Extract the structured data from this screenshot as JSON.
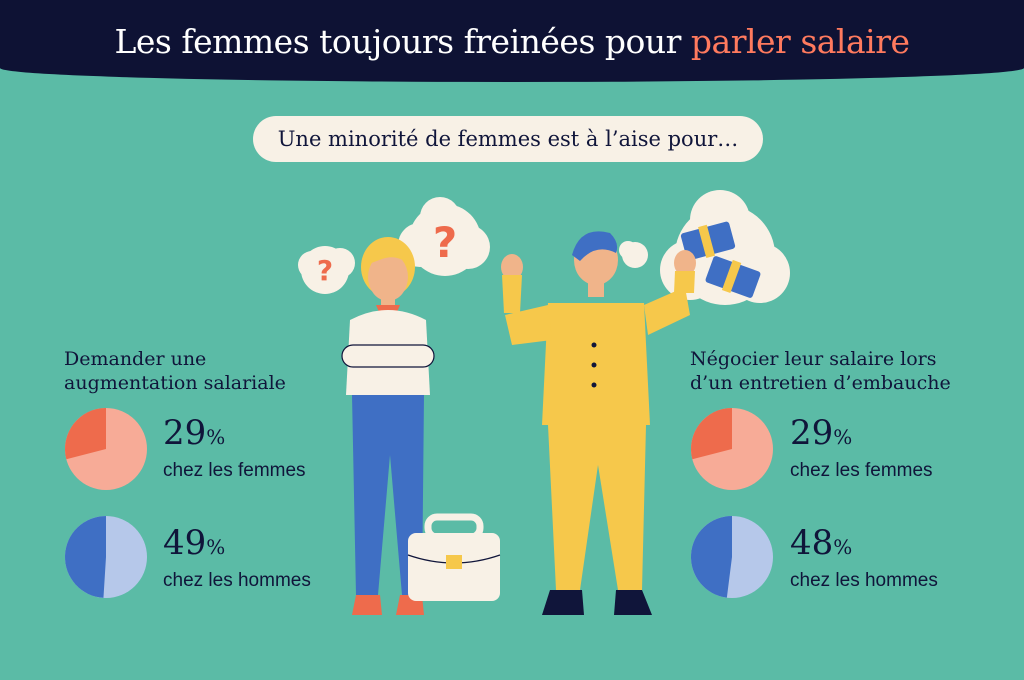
{
  "header": {
    "title_part1": "Les femmes toujours freinées pour ",
    "title_part2": "parler salaire"
  },
  "subtitle": "Une minorité de femmes est à l’aise pour…",
  "colors": {
    "background": "#5bbba6",
    "header_bg": "#0e1234",
    "accent": "#ff7a5e",
    "women_light": "#f7ab97",
    "women_dark": "#ee6b4c",
    "men_light": "#b6c8ea",
    "men_dark": "#3f6fc4"
  },
  "chart_data": [
    {
      "type": "pie",
      "title": "Demander une\naugmentation salariale",
      "series": [
        {
          "label": "chez les femmes",
          "value": 29,
          "unit": "%"
        },
        {
          "label": "chez les hommes",
          "value": 49,
          "unit": "%"
        }
      ]
    },
    {
      "type": "pie",
      "title": "Négocier leur salaire lors\nd’un entretien d’embauche",
      "series": [
        {
          "label": "chez les femmes",
          "value": 29,
          "unit": "%"
        },
        {
          "label": "chez les hommes",
          "value": 48,
          "unit": "%"
        }
      ]
    }
  ]
}
